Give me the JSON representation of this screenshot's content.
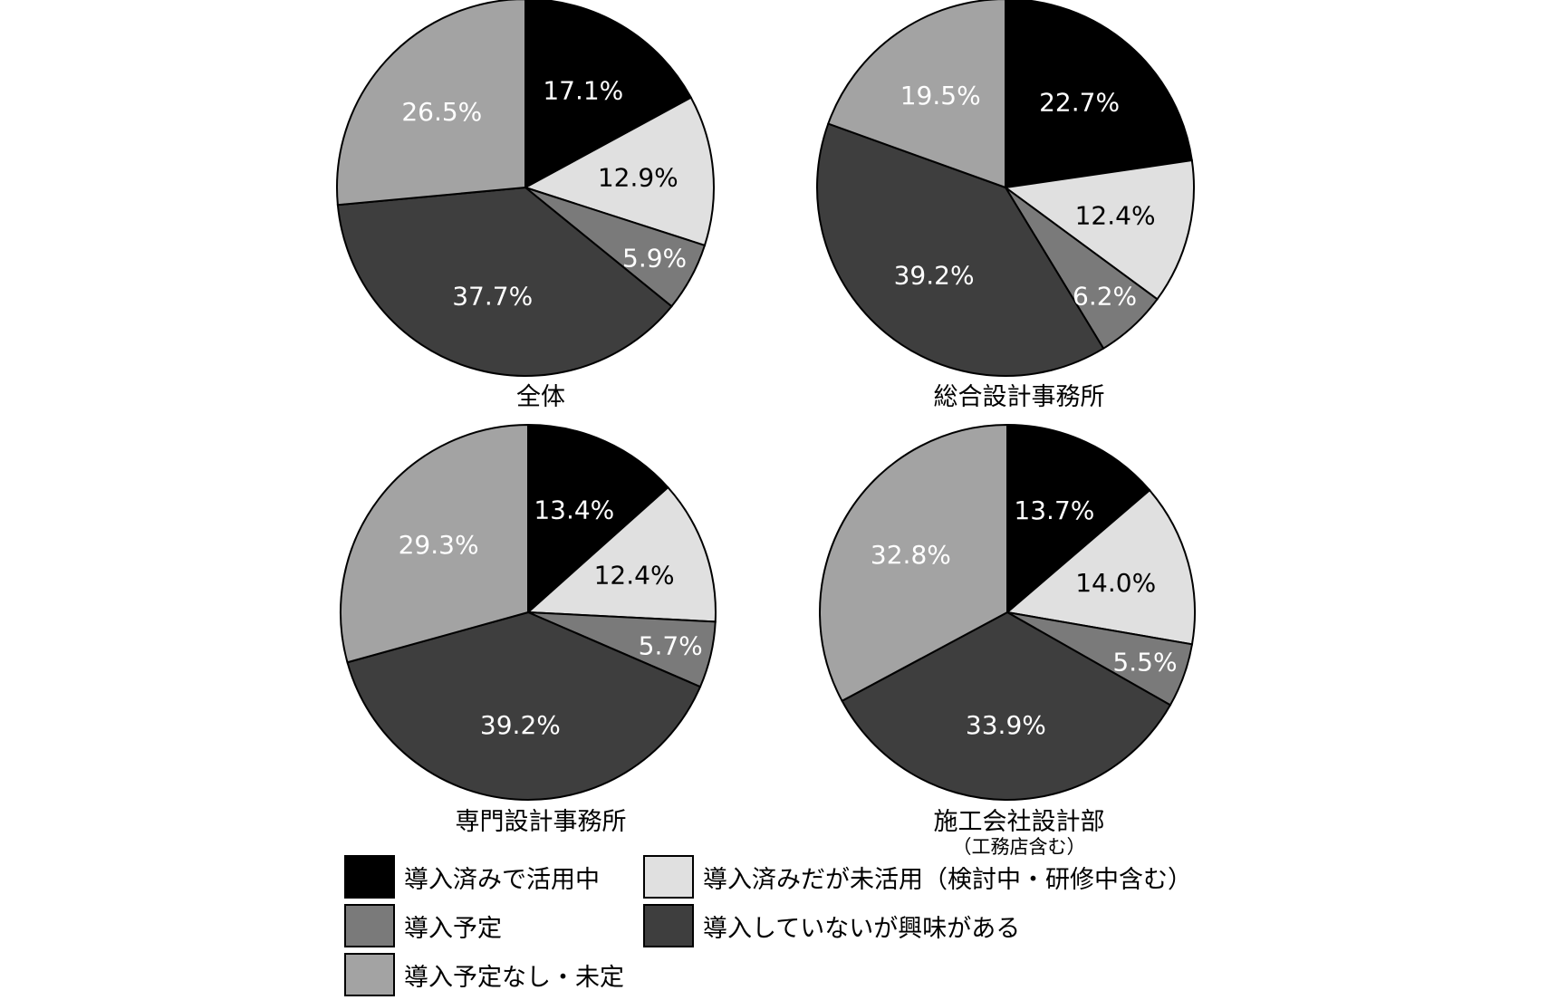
{
  "chart_data": [
    {
      "type": "pie",
      "title": "全体",
      "subtitle": "",
      "categories": [
        "導入済みで活用中",
        "導入済みだが未活用（検討中・研修中含む）",
        "導入予定",
        "導入していないが興味がある",
        "導入予定なし・未定"
      ],
      "values": [
        17.1,
        12.9,
        5.9,
        37.7,
        26.5
      ],
      "labels": [
        "17.1%",
        "12.9%",
        "5.9%",
        "37.7%",
        "26.5%"
      ]
    },
    {
      "type": "pie",
      "title": "総合設計事務所",
      "subtitle": "",
      "categories": [
        "導入済みで活用中",
        "導入済みだが未活用（検討中・研修中含む）",
        "導入予定",
        "導入していないが興味がある",
        "導入予定なし・未定"
      ],
      "values": [
        22.7,
        12.4,
        6.2,
        39.2,
        19.5
      ],
      "labels": [
        "22.7%",
        "12.4%",
        "6.2%",
        "39.2%",
        "19.5%"
      ]
    },
    {
      "type": "pie",
      "title": "専門設計事務所",
      "subtitle": "",
      "categories": [
        "導入済みで活用中",
        "導入済みだが未活用（検討中・研修中含む）",
        "導入予定",
        "導入していないが興味がある",
        "導入予定なし・未定"
      ],
      "values": [
        13.4,
        12.4,
        5.7,
        39.2,
        29.3
      ],
      "labels": [
        "13.4%",
        "12.4%",
        "5.7%",
        "39.2%",
        "29.3%"
      ]
    },
    {
      "type": "pie",
      "title": "施工会社設計部",
      "subtitle": "（工務店含む）",
      "categories": [
        "導入済みで活用中",
        "導入済みだが未活用（検討中・研修中含む）",
        "導入予定",
        "導入していないが興味がある",
        "導入予定なし・未定"
      ],
      "values": [
        13.7,
        14.0,
        5.5,
        33.9,
        32.8
      ],
      "labels": [
        "13.7%",
        "14.0%",
        "5.5%",
        "33.9%",
        "32.8%"
      ]
    }
  ],
  "colors": [
    "#000000",
    "#e0e0e0",
    "#7a7a7a",
    "#3e3e3e",
    "#a3a3a3"
  ],
  "label_colors": [
    "#ffffff",
    "#000000",
    "#ffffff",
    "#ffffff",
    "#ffffff"
  ],
  "legend": {
    "items": [
      {
        "label": "導入済みで活用中",
        "color": "#000000"
      },
      {
        "label": "導入済みだが未活用（検討中・研修中含む）",
        "color": "#e0e0e0"
      },
      {
        "label": "導入予定",
        "color": "#7a7a7a"
      },
      {
        "label": "導入していないが興味がある",
        "color": "#3e3e3e"
      },
      {
        "label": "導入予定なし・未定",
        "color": "#a3a3a3"
      }
    ]
  }
}
